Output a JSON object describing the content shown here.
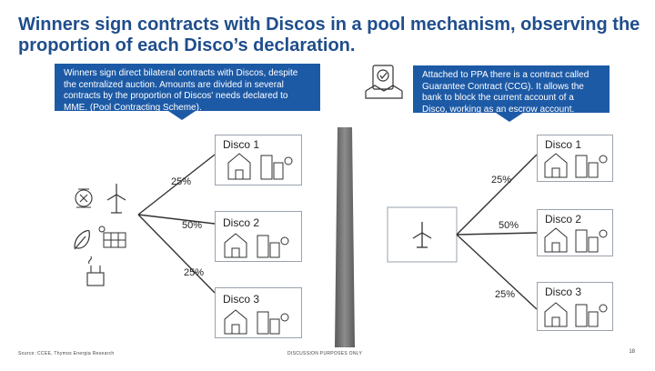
{
  "title": "Winners sign contracts with Discos in a pool mechanism, observing the proportion of each Disco’s declaration.",
  "callout_left": "Winners sign direct bilateral contracts with Discos, despite the centralized auction. Amounts are divided in several contracts by the proportion of Discos' needs declared to MME. (Pool Contracting Scheme).",
  "callout_right": "Attached to PPA there is a contract called Guarantee Contract (CCG). It allows the bank to block the current account of a Disco, working as an escrow account.",
  "left": {
    "discos": [
      "Disco 1",
      "Disco 2",
      "Disco 3"
    ],
    "percents": [
      "25%",
      "50%",
      "25%"
    ]
  },
  "right": {
    "discos": [
      "Disco 1",
      "Disco 2",
      "Disco 3"
    ],
    "percents": [
      "25%",
      "50%",
      "25%"
    ]
  },
  "footer": {
    "source": "Source: CCEE, Thymos Energia Research",
    "disclaimer": "DISCUSSION PURPOSES ONLY",
    "page": "18"
  },
  "colors": {
    "accent": "#1d5aa6",
    "title": "#1f4e8c",
    "divider": "#6b6b6b"
  }
}
